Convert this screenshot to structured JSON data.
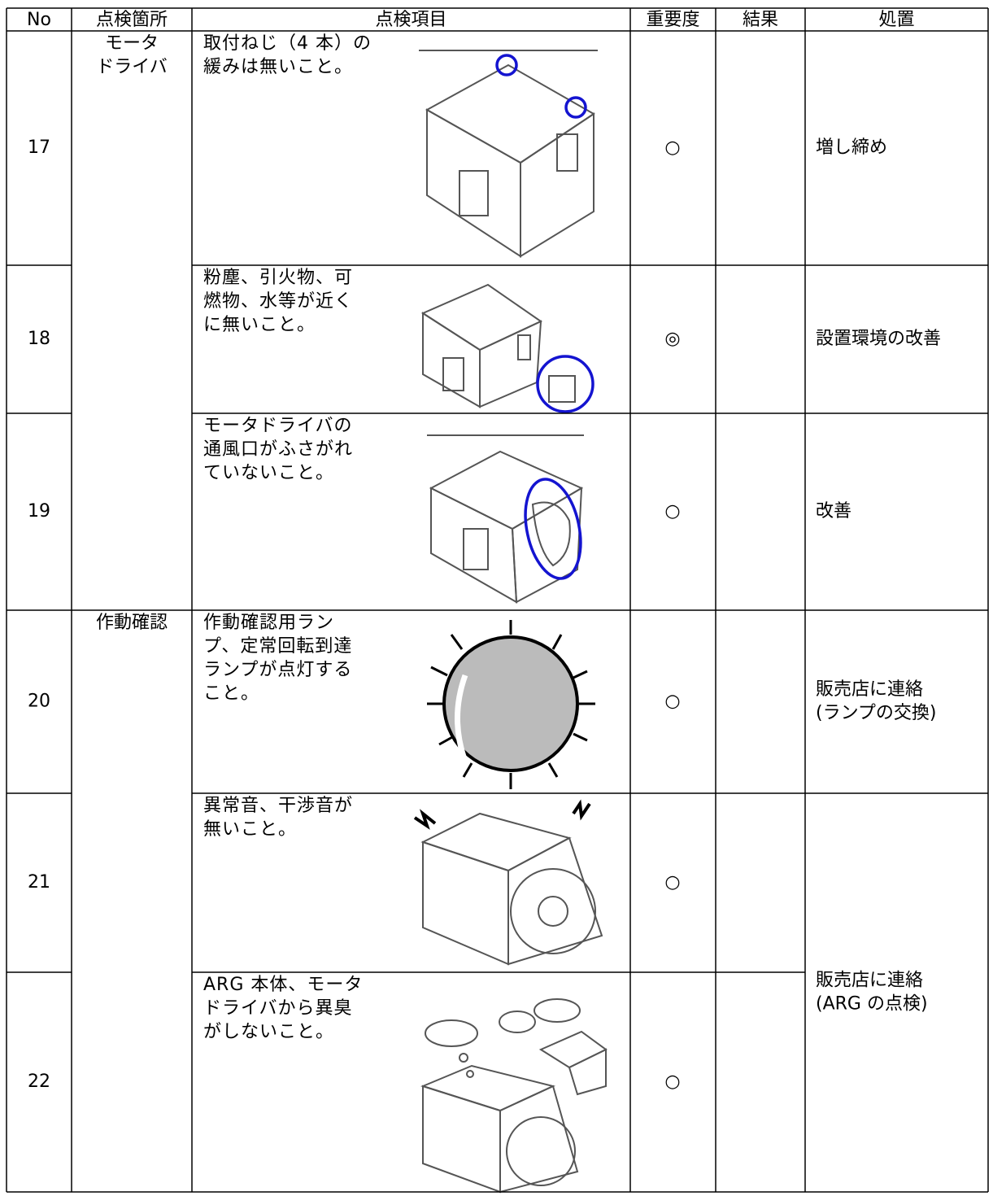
{
  "table": {
    "header": [
      "No",
      "点検箇所",
      "点検項目",
      "重要度",
      "結果",
      "処置"
    ],
    "groups": [
      {
        "label": [
          "モータ",
          "ドライバ"
        ]
      },
      {
        "label": [
          "作動確認"
        ]
      }
    ],
    "rows": [
      {
        "no": "17",
        "item": [
          "取付ねじ（4 本）の",
          "緩みは無いこと。"
        ],
        "importance": "○"
      },
      {
        "no": "18",
        "item": [
          "粉塵、引火物、可",
          "燃物、水等が近く",
          "に無いこと。"
        ],
        "importance": "◎"
      },
      {
        "no": "19",
        "item": [
          "モータドライバの",
          "通風口がふさがれ",
          "ていないこと。"
        ],
        "importance": "○"
      },
      {
        "no": "20",
        "item": [
          "作動確認用ラン",
          "プ、定常回転到達",
          "ランプが点灯する",
          "こと。"
        ],
        "importance": "○"
      },
      {
        "no": "21",
        "item": [
          "異常音、干渉音が",
          "無いこと。"
        ],
        "importance": "○"
      },
      {
        "no": "22",
        "item": [
          "ARG 本体、モータ",
          "ドライバから異臭",
          "がしないこと。"
        ],
        "importance": "○"
      }
    ],
    "actions": [
      {
        "label": [
          "増し締め"
        ]
      },
      {
        "label": [
          "設置環境の改善"
        ]
      },
      {
        "label": [
          "改善"
        ]
      },
      {
        "label": [
          "販売店に連絡",
          "(ランプの交換)"
        ]
      },
      {
        "label": [
          "販売店に連絡",
          "(ARG の点検)"
        ]
      }
    ]
  }
}
